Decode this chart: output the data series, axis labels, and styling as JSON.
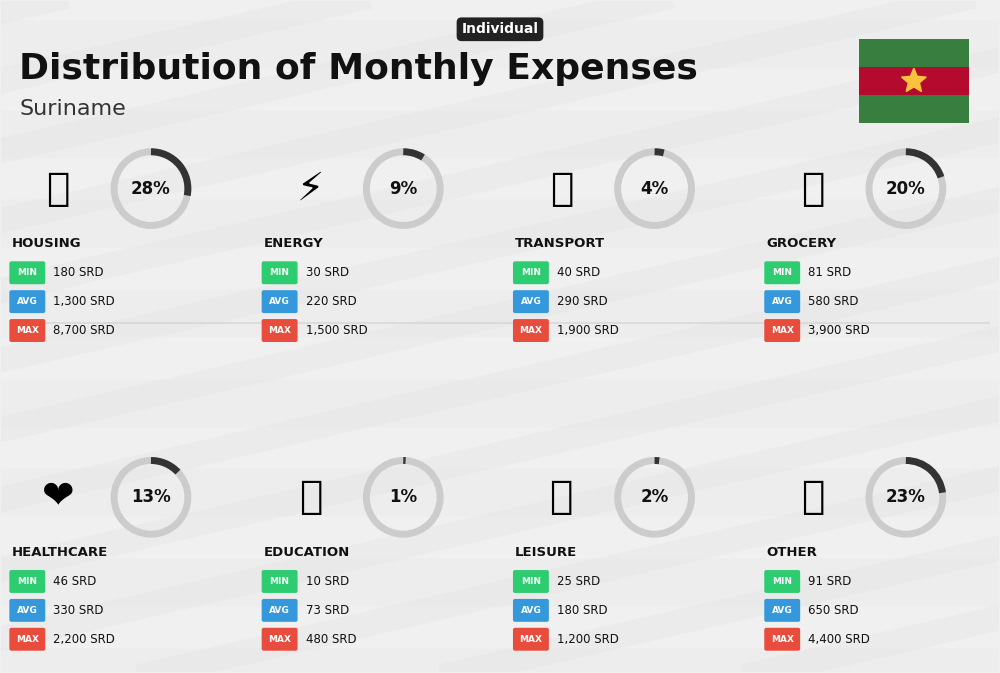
{
  "title": "Distribution of Monthly Expenses",
  "subtitle": "Individual",
  "country": "Suriname",
  "bg_color": "#f0f0f0",
  "categories": [
    {
      "name": "HOUSING",
      "pct": 28,
      "min_val": "180 SRD",
      "avg_val": "1,300 SRD",
      "max_val": "8,700 SRD",
      "emoji": "🏗",
      "row": 0,
      "col": 0
    },
    {
      "name": "ENERGY",
      "pct": 9,
      "min_val": "30 SRD",
      "avg_val": "220 SRD",
      "max_val": "1,500 SRD",
      "emoji": "⚡",
      "row": 0,
      "col": 1
    },
    {
      "name": "TRANSPORT",
      "pct": 4,
      "min_val": "40 SRD",
      "avg_val": "290 SRD",
      "max_val": "1,900 SRD",
      "emoji": "🚌",
      "row": 0,
      "col": 2
    },
    {
      "name": "GROCERY",
      "pct": 20,
      "min_val": "81 SRD",
      "avg_val": "580 SRD",
      "max_val": "3,900 SRD",
      "emoji": "🛒",
      "row": 0,
      "col": 3
    },
    {
      "name": "HEALTHCARE",
      "pct": 13,
      "min_val": "46 SRD",
      "avg_val": "330 SRD",
      "max_val": "2,200 SRD",
      "emoji": "❤️",
      "row": 1,
      "col": 0
    },
    {
      "name": "EDUCATION",
      "pct": 1,
      "min_val": "10 SRD",
      "avg_val": "73 SRD",
      "max_val": "480 SRD",
      "emoji": "🎓",
      "row": 1,
      "col": 1
    },
    {
      "name": "LEISURE",
      "pct": 2,
      "min_val": "25 SRD",
      "avg_val": "180 SRD",
      "max_val": "1,200 SRD",
      "emoji": "🛍",
      "row": 1,
      "col": 2
    },
    {
      "name": "OTHER",
      "pct": 23,
      "min_val": "91 SRD",
      "avg_val": "650 SRD",
      "max_val": "4,400 SRD",
      "emoji": "💰",
      "row": 1,
      "col": 3
    }
  ],
  "min_color": "#2ecc71",
  "avg_color": "#3498db",
  "max_color": "#e74c3c",
  "arc_color": "#333333",
  "arc_bg_color": "#cccccc",
  "flag_colors": [
    "#377e3f",
    "#b40a2d",
    "#377e3f"
  ],
  "suriname_flag_star_color": "#f9c23c"
}
